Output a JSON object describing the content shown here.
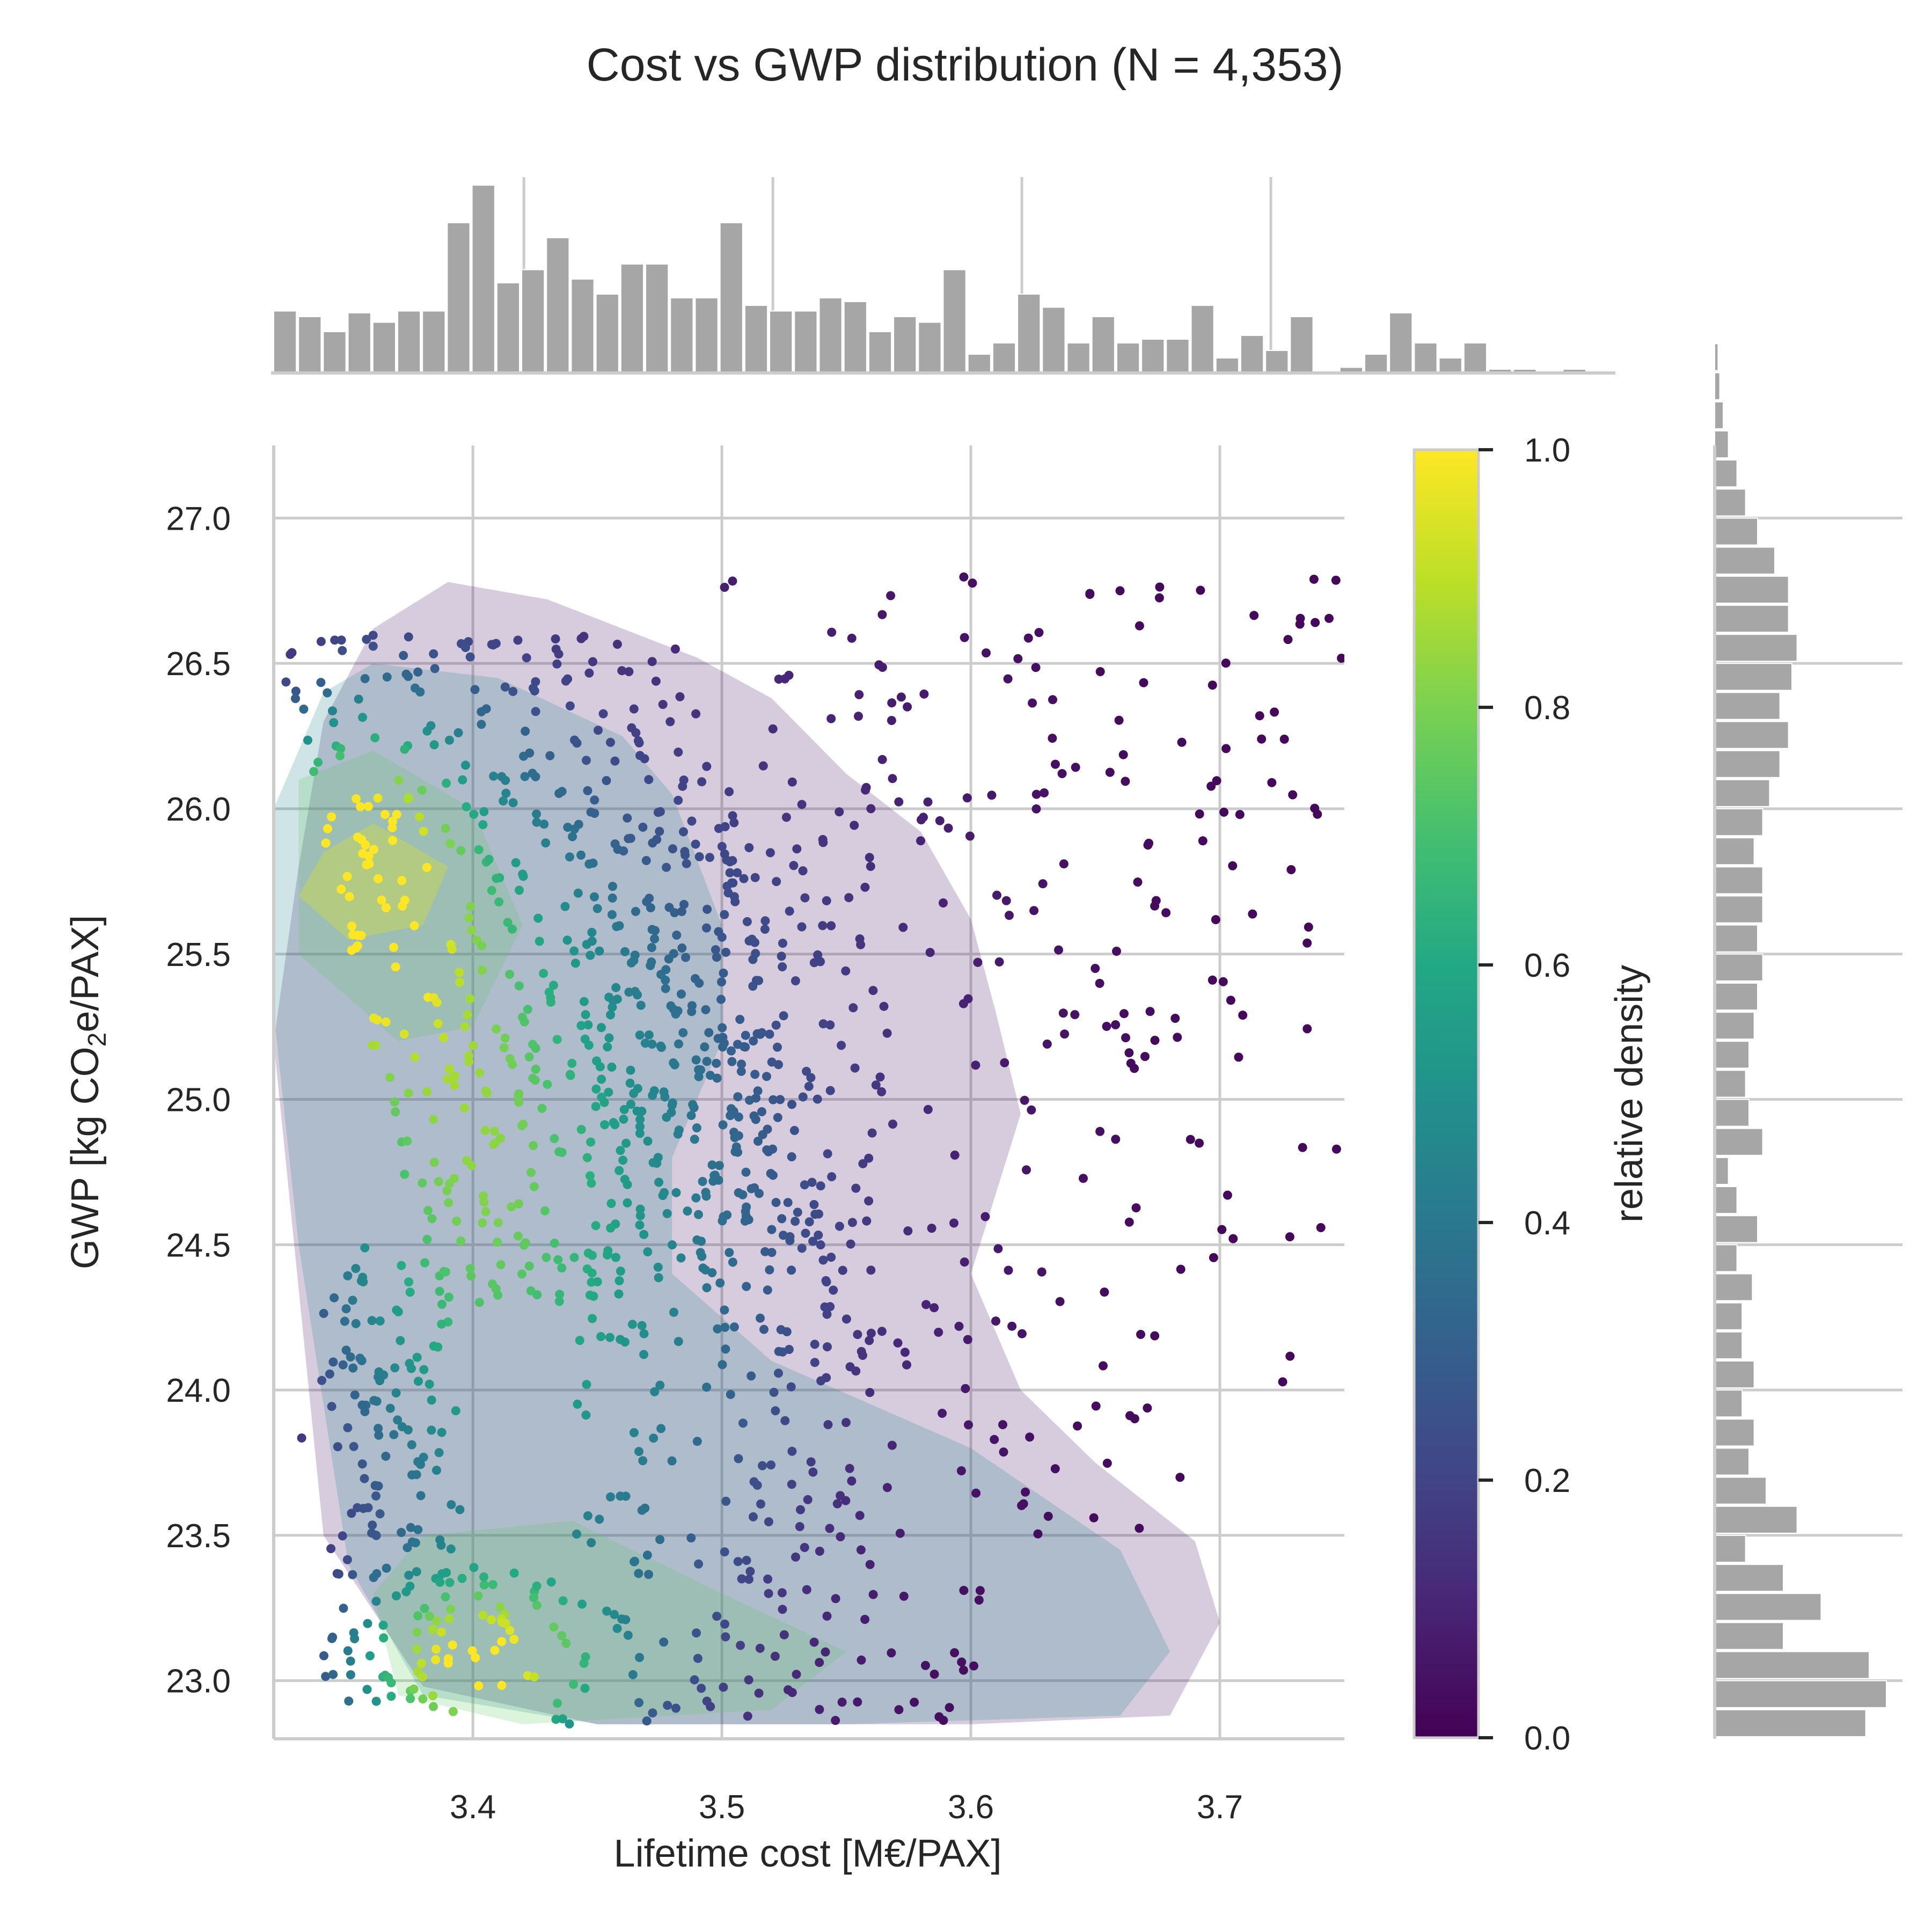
{
  "chart_data": {
    "type": "scatter",
    "title": "Cost vs GWP distribution  (N = 4,353)",
    "xlabel": "Lifetime cost [M€/PAX]",
    "ylabel_parts": {
      "before": "GWP [kg CO",
      "sub": "2",
      "after": "e/PAX]"
    },
    "xlim": [
      3.32,
      3.75
    ],
    "ylim": [
      22.8,
      27.25
    ],
    "x_ticks": [
      3.4,
      3.5,
      3.6,
      3.7
    ],
    "x_tick_labels": [
      "3.4",
      "3.5",
      "3.6",
      "3.7"
    ],
    "y_ticks": [
      23.0,
      23.5,
      24.0,
      24.5,
      25.0,
      25.5,
      26.0,
      26.5,
      27.0
    ],
    "y_tick_labels": [
      "23.0",
      "23.5",
      "24.0",
      "24.5",
      "25.0",
      "25.5",
      "26.0",
      "26.5",
      "27.0"
    ],
    "grid": true,
    "colormap": "viridis",
    "colorbar": {
      "label": "relative density",
      "range": [
        0.0,
        1.0
      ],
      "ticks": [
        0.0,
        0.2,
        0.4,
        0.6,
        0.8,
        1.0
      ],
      "tick_labels": [
        "0.0",
        "0.2",
        "0.4",
        "0.6",
        "0.8",
        "1.0"
      ]
    },
    "marginal_x_histogram": {
      "bin_start": 3.32,
      "bin_width": 0.009,
      "relative_counts": [
        0.33,
        0.3,
        0.22,
        0.32,
        0.27,
        0.33,
        0.33,
        0.8,
        1.0,
        0.48,
        0.55,
        0.72,
        0.5,
        0.42,
        0.58,
        0.58,
        0.4,
        0.4,
        0.8,
        0.36,
        0.33,
        0.33,
        0.4,
        0.38,
        0.22,
        0.3,
        0.27,
        0.55,
        0.1,
        0.16,
        0.42,
        0.35,
        0.16,
        0.3,
        0.16,
        0.18,
        0.18,
        0.36,
        0.08,
        0.2,
        0.12,
        0.3,
        0,
        0.03,
        0.1,
        0.32,
        0.16,
        0.08,
        0.16,
        0.02,
        0.02,
        0,
        0.02,
        0
      ]
    },
    "marginal_y_histogram": {
      "bin_start": 22.8,
      "bin_width": 0.1,
      "relative_counts": [
        0.88,
        1.0,
        0.9,
        0.4,
        0.62,
        0.4,
        0.18,
        0.48,
        0.3,
        0.2,
        0.23,
        0.16,
        0.23,
        0.16,
        0.16,
        0.22,
        0.13,
        0.25,
        0.13,
        0.08,
        0.28,
        0.2,
        0.18,
        0.2,
        0.23,
        0.25,
        0.28,
        0.25,
        0.28,
        0.28,
        0.23,
        0.28,
        0.32,
        0.38,
        0.43,
        0.38,
        0.45,
        0.48,
        0.43,
        0.43,
        0.35,
        0.25,
        0.18,
        0.13,
        0.08,
        0.05,
        0.03,
        0.02
      ]
    },
    "density_regions": [
      {
        "level": 0.06,
        "points": [
          [
            3.36,
            26.62
          ],
          [
            3.39,
            26.78
          ],
          [
            3.43,
            26.72
          ],
          [
            3.46,
            26.62
          ],
          [
            3.49,
            26.52
          ],
          [
            3.52,
            26.38
          ],
          [
            3.55,
            26.12
          ],
          [
            3.58,
            25.92
          ],
          [
            3.6,
            25.62
          ],
          [
            3.61,
            25.3
          ],
          [
            3.62,
            24.95
          ],
          [
            3.6,
            24.4
          ],
          [
            3.62,
            24.0
          ],
          [
            3.65,
            23.75
          ],
          [
            3.69,
            23.48
          ],
          [
            3.7,
            23.2
          ],
          [
            3.68,
            22.88
          ],
          [
            3.6,
            22.85
          ],
          [
            3.5,
            22.85
          ],
          [
            3.45,
            22.85
          ],
          [
            3.38,
            22.98
          ],
          [
            3.34,
            23.5
          ],
          [
            3.32,
            25.2
          ],
          [
            3.33,
            25.8
          ],
          [
            3.34,
            26.3
          ]
        ]
      },
      {
        "level": 0.45,
        "points": [
          [
            3.34,
            26.4
          ],
          [
            3.36,
            26.5
          ],
          [
            3.41,
            26.45
          ],
          [
            3.46,
            26.25
          ],
          [
            3.48,
            26.05
          ],
          [
            3.5,
            25.6
          ],
          [
            3.5,
            25.2
          ],
          [
            3.48,
            24.8
          ],
          [
            3.48,
            24.4
          ],
          [
            3.52,
            24.1
          ],
          [
            3.6,
            23.8
          ],
          [
            3.66,
            23.45
          ],
          [
            3.68,
            23.1
          ],
          [
            3.66,
            22.88
          ],
          [
            3.55,
            22.85
          ],
          [
            3.45,
            22.85
          ],
          [
            3.38,
            22.95
          ],
          [
            3.35,
            23.4
          ],
          [
            3.33,
            24.5
          ],
          [
            3.32,
            25.3
          ],
          [
            3.32,
            26.0
          ]
        ]
      },
      {
        "level": 0.75,
        "points": [
          [
            3.33,
            26.1
          ],
          [
            3.36,
            26.2
          ],
          [
            3.4,
            26.0
          ],
          [
            3.42,
            25.6
          ],
          [
            3.4,
            25.25
          ],
          [
            3.37,
            25.2
          ],
          [
            3.33,
            25.5
          ]
        ]
      },
      {
        "level": 0.75,
        "points": [
          [
            3.38,
            23.5
          ],
          [
            3.44,
            23.55
          ],
          [
            3.5,
            23.3
          ],
          [
            3.55,
            23.1
          ],
          [
            3.52,
            22.9
          ],
          [
            3.42,
            22.85
          ],
          [
            3.37,
            22.95
          ],
          [
            3.36,
            23.3
          ]
        ]
      },
      {
        "level": 0.95,
        "points": [
          [
            3.34,
            25.85
          ],
          [
            3.36,
            25.95
          ],
          [
            3.39,
            25.8
          ],
          [
            3.38,
            25.6
          ],
          [
            3.35,
            25.55
          ],
          [
            3.33,
            25.7
          ]
        ]
      }
    ],
    "points_description": "4,353 design points colored by relative density (viridis)"
  }
}
